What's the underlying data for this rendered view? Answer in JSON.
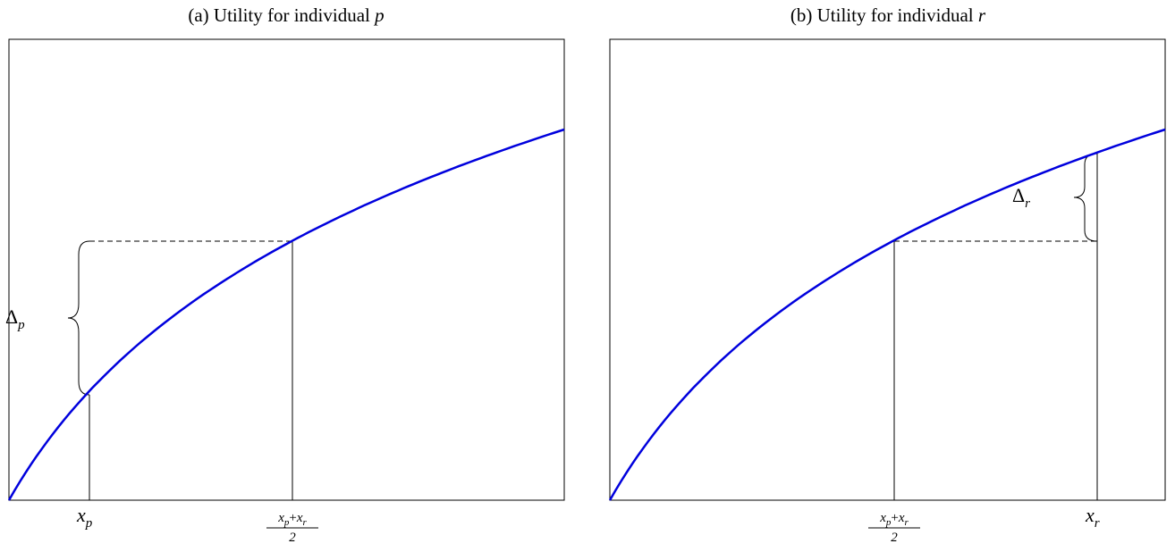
{
  "panels": [
    {
      "title": "(a) Utility for individual ",
      "title_var": "p",
      "delta": {
        "symbol": "Δ",
        "sub": "p"
      },
      "x_labels": [
        {
          "base": "x",
          "sub": "p"
        },
        {
          "numerator": [
            {
              "base": "x",
              "sub": "p"
            },
            "+",
            {
              "base": "x",
              "sub": "r"
            }
          ],
          "denominator": "2"
        }
      ]
    },
    {
      "title": "(b) Utility for individual ",
      "title_var": "r",
      "delta": {
        "symbol": "Δ",
        "sub": "r"
      },
      "x_labels": [
        {
          "numerator": [
            {
              "base": "x",
              "sub": "p"
            },
            "+",
            {
              "base": "x",
              "sub": "r"
            }
          ],
          "denominator": "2"
        },
        {
          "base": "x",
          "sub": "r"
        }
      ]
    }
  ]
}
